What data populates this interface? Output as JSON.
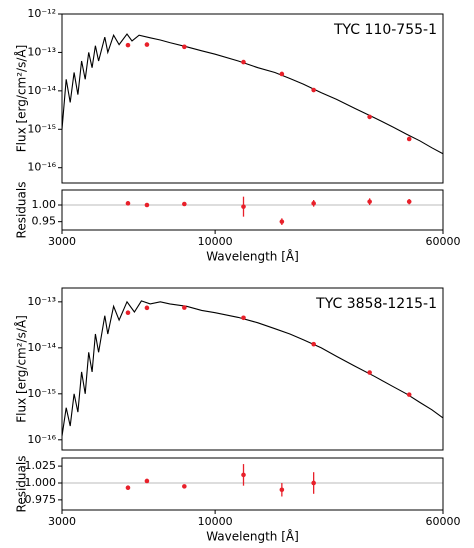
{
  "chart_data": [
    {
      "type": "sed",
      "annotation": "TYC 110-755-1",
      "ylabel": "Flux [erg/cm²/s/Å]",
      "log_x": true,
      "log_y": true,
      "xlim": [
        3000,
        60000
      ],
      "ylim": [
        4e-17,
        1e-12
      ],
      "yticks": [
        {
          "value": 1e-12,
          "label": "10⁻¹²"
        },
        {
          "value": 1e-13,
          "label": "10⁻¹³"
        },
        {
          "value": 1e-14,
          "label": "10⁻¹⁴"
        },
        {
          "value": 1e-15,
          "label": "10⁻¹⁵"
        },
        {
          "value": 1e-16,
          "label": "10⁻¹⁶"
        }
      ],
      "model": {
        "color": "#000000",
        "x": [
          3000,
          3100,
          3200,
          3300,
          3400,
          3500,
          3600,
          3700,
          3800,
          3900,
          4000,
          4200,
          4300,
          4500,
          4700,
          5000,
          5200,
          5500,
          6000,
          6500,
          7000,
          8000,
          9000,
          10000,
          12000,
          14000,
          16000,
          18000,
          20000,
          23000,
          26000,
          30000,
          35000,
          40000,
          45000,
          50000,
          55000,
          60000
        ],
        "values": [
          1e-15,
          2e-14,
          5e-15,
          3e-14,
          8e-15,
          6e-14,
          2e-14,
          1e-13,
          4e-14,
          1.5e-13,
          6e-14,
          2.5e-13,
          1e-13,
          2.8e-13,
          1.6e-13,
          3e-13,
          2e-13,
          2.8e-13,
          2.4e-13,
          2.1e-13,
          1.8e-13,
          1.4e-13,
          1.1e-13,
          9e-14,
          6e-14,
          4e-14,
          3e-14,
          2.1e-14,
          1.5e-14,
          9e-15,
          6e-15,
          3.5e-15,
          2e-15,
          1.2e-15,
          7.5e-16,
          5e-16,
          3.3e-16,
          2.3e-16
        ]
      },
      "photometry": {
        "color": "#e8202a",
        "x": [
          5040,
          5850,
          7850,
          12500,
          16900,
          21700,
          33700,
          46000
        ],
        "values": [
          1.55e-13,
          1.6e-13,
          1.4e-13,
          5.6e-14,
          2.75e-14,
          1.05e-14,
          2.1e-15,
          5.6e-16
        ]
      }
    },
    {
      "type": "errorbar",
      "ylabel": "Residuals",
      "xlabel": "Wavelength [Å]",
      "log_x": true,
      "log_y": false,
      "xlim": [
        3000,
        60000
      ],
      "xticks": [
        3000,
        10000,
        60000
      ],
      "ylim": [
        0.925,
        1.045
      ],
      "yticks": [
        {
          "value": 1,
          "label": "1.00"
        },
        {
          "value": 0.95,
          "label": "0.95"
        }
      ],
      "hline": 1,
      "color": "#e8202a",
      "x": [
        5040,
        5850,
        7850,
        12500,
        16900,
        21700,
        33700,
        46000
      ],
      "values": [
        1.005,
        1.0,
        1.003,
        0.995,
        0.95,
        1.005,
        1.01,
        1.01
      ],
      "errors": [
        0,
        0,
        0,
        0.03,
        0.01,
        0.01,
        0.01,
        0.008
      ]
    },
    {
      "type": "sed",
      "annotation": "TYC 3858-1215-1",
      "ylabel": "Flux [erg/cm²/s/Å]",
      "log_x": true,
      "log_y": true,
      "xlim": [
        3000,
        60000
      ],
      "ylim": [
        6e-17,
        2e-13
      ],
      "yticks": [
        {
          "value": 1e-13,
          "label": "10⁻¹³"
        },
        {
          "value": 1e-14,
          "label": "10⁻¹⁴"
        },
        {
          "value": 1e-15,
          "label": "10⁻¹⁵"
        },
        {
          "value": 1e-16,
          "label": "10⁻¹⁶"
        }
      ],
      "model": {
        "color": "#000000",
        "x": [
          3000,
          3100,
          3200,
          3300,
          3400,
          3500,
          3600,
          3700,
          3800,
          3900,
          4000,
          4200,
          4300,
          4500,
          4700,
          5000,
          5300,
          5600,
          6000,
          6500,
          7000,
          8000,
          9000,
          10000,
          12000,
          14000,
          16000,
          18000,
          20000,
          23000,
          26000,
          30000,
          35000,
          40000,
          45000,
          50000,
          55000,
          60000
        ],
        "values": [
          1.2e-16,
          5e-16,
          2e-16,
          1e-15,
          4e-16,
          3e-15,
          1e-15,
          8e-15,
          3e-15,
          2e-14,
          8e-15,
          5e-14,
          2e-14,
          8e-14,
          4e-14,
          1e-13,
          6e-14,
          1.05e-13,
          9e-14,
          1e-13,
          9e-14,
          8e-14,
          6.5e-14,
          5.8e-14,
          4.6e-14,
          3.5e-14,
          2.6e-14,
          2e-14,
          1.5e-14,
          1e-14,
          6.5e-15,
          4e-15,
          2.4e-15,
          1.5e-15,
          1e-15,
          6.5e-16,
          4.5e-16,
          3e-16
        ]
      },
      "photometry": {
        "color": "#e8202a",
        "x": [
          5040,
          5850,
          7850,
          12500,
          21700,
          33700,
          46000
        ],
        "values": [
          5.8e-14,
          7.4e-14,
          7.5e-14,
          4.5e-14,
          1.2e-14,
          2.9e-15,
          9.6e-16
        ]
      }
    },
    {
      "type": "errorbar",
      "ylabel": "Residuals",
      "xlabel": "Wavelength [Å]",
      "log_x": true,
      "log_y": false,
      "xlim": [
        3000,
        60000
      ],
      "xticks": [
        3000,
        10000,
        60000
      ],
      "ylim": [
        0.96,
        1.037
      ],
      "yticks": [
        {
          "value": 1.025,
          "label": "1.025"
        },
        {
          "value": 1,
          "label": "1.000"
        },
        {
          "value": 0.975,
          "label": "0.975"
        }
      ],
      "hline": 1,
      "color": "#e8202a",
      "x": [
        5040,
        5850,
        7850,
        12500,
        16900,
        21700
      ],
      "values": [
        0.993,
        1.003,
        0.995,
        1.012,
        0.99,
        1.0
      ],
      "errors": [
        0,
        0,
        0,
        0.016,
        0.01,
        0.016
      ]
    }
  ]
}
